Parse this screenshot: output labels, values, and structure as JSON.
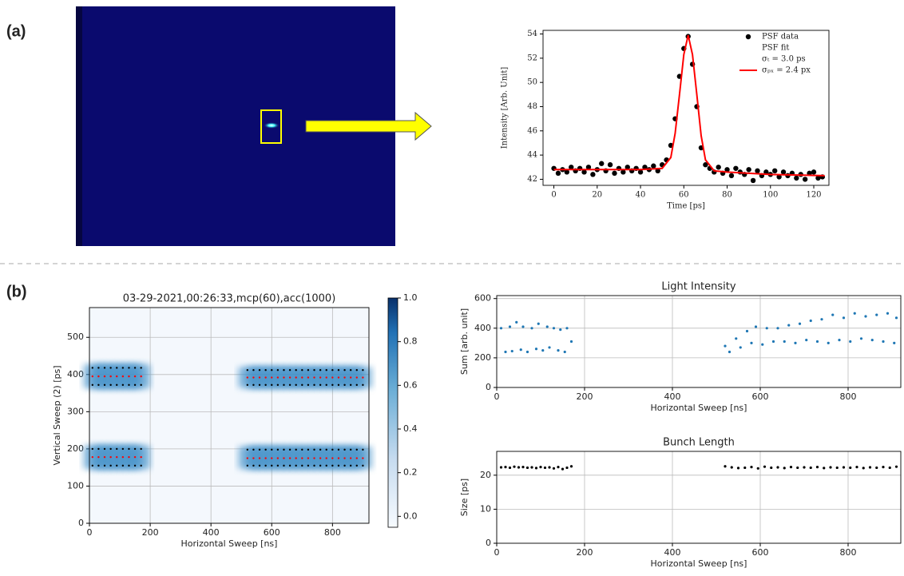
{
  "panel_labels": [
    "(a)",
    "(b)"
  ],
  "chart_data": [
    {
      "type": "scatter",
      "xlabel": "Time [ps]",
      "ylabel": "Intensity [Arb. Unit]",
      "xlim": [
        -5,
        127
      ],
      "ylim": [
        41.5,
        54.3
      ],
      "xticks": [
        0,
        20,
        40,
        60,
        80,
        100,
        120
      ],
      "yticks": [
        42,
        44,
        46,
        48,
        50,
        52,
        54
      ],
      "grid": false,
      "legend_notes": [
        "σₜ = 3.0 ps",
        "σₚₓ = 2.4 px"
      ],
      "series": [
        {
          "name": "PSF data",
          "color": "#000000",
          "mode": "markers",
          "x": [
            0,
            2,
            4,
            6,
            8,
            10,
            12,
            14,
            16,
            18,
            20,
            22,
            24,
            26,
            28,
            30,
            32,
            34,
            36,
            38,
            40,
            42,
            44,
            46,
            48,
            50,
            52,
            54,
            56,
            58,
            60,
            62,
            64,
            66,
            68,
            70,
            72,
            74,
            76,
            78,
            80,
            82,
            84,
            86,
            88,
            90,
            92,
            94,
            96,
            98,
            100,
            102,
            104,
            106,
            108,
            110,
            112,
            114,
            116,
            118,
            120,
            122,
            124
          ],
          "values": [
            42.9,
            42.5,
            42.8,
            42.6,
            43.0,
            42.7,
            42.9,
            42.6,
            43.0,
            42.4,
            42.8,
            43.3,
            42.7,
            43.2,
            42.5,
            42.9,
            42.6,
            43.0,
            42.7,
            42.9,
            42.6,
            43.0,
            42.8,
            43.1,
            42.7,
            43.2,
            43.6,
            44.8,
            47.0,
            50.5,
            52.8,
            53.8,
            51.5,
            48.0,
            44.6,
            43.2,
            42.9,
            42.6,
            43.0,
            42.5,
            42.8,
            42.3,
            42.9,
            42.6,
            42.4,
            42.8,
            41.9,
            42.7,
            42.3,
            42.6,
            42.4,
            42.7,
            42.2,
            42.6,
            42.3,
            42.5,
            42.1,
            42.4,
            42.0,
            42.5,
            42.6,
            42.1,
            42.2
          ]
        },
        {
          "name": "PSF fit",
          "color": "#ff0000",
          "mode": "line",
          "x": [
            0,
            20,
            40,
            50,
            54,
            56,
            58,
            60,
            62,
            64,
            66,
            68,
            70,
            74,
            80,
            100,
            125
          ],
          "values": [
            42.8,
            42.8,
            42.8,
            42.9,
            43.8,
            45.8,
            49.0,
            52.3,
            53.9,
            52.3,
            49.0,
            45.6,
            43.6,
            42.7,
            42.6,
            42.4,
            42.3
          ]
        }
      ]
    },
    {
      "type": "heatmap",
      "title": "03-29-2021,00:26:33,mcp(60),acc(1000)",
      "xlabel": "Horizontal Sweep [ns]",
      "ylabel": "Vertical Sweep (2) [ps]",
      "xlim": [
        0,
        920
      ],
      "ylim": [
        0,
        580
      ],
      "xticks": [
        0,
        200,
        400,
        600,
        800
      ],
      "yticks": [
        0,
        100,
        200,
        300,
        400,
        500
      ],
      "grid": true,
      "colorbar_lim": [
        -0.05,
        1.0
      ],
      "colorbar_ticks": [
        {
          "value": 0,
          "label": "0.0"
        },
        0.2,
        0.4,
        0.6,
        0.8,
        {
          "value": 1,
          "label": "1.0"
        }
      ],
      "x": [
        10,
        30,
        50,
        70,
        90,
        110,
        130,
        150,
        170,
        520,
        540,
        560,
        580,
        600,
        620,
        640,
        660,
        680,
        700,
        720,
        740,
        760,
        780,
        800,
        820,
        840,
        860,
        880,
        900
      ],
      "series": [
        {
          "color": "#000000",
          "values": [
            418,
            418,
            418,
            418,
            418,
            418,
            418,
            418,
            418,
            412,
            412,
            412,
            412,
            412,
            412,
            412,
            412,
            412,
            412,
            412,
            412,
            412,
            412,
            412,
            412,
            412,
            412,
            412,
            412
          ]
        },
        {
          "color": "#ff0000",
          "values": [
            395,
            395,
            395,
            395,
            395,
            395,
            395,
            395,
            395,
            392,
            392,
            392,
            392,
            392,
            392,
            392,
            392,
            392,
            392,
            392,
            392,
            392,
            392,
            392,
            392,
            392,
            392,
            392,
            392
          ]
        },
        {
          "color": "#000000",
          "values": [
            372,
            372,
            372,
            372,
            372,
            372,
            372,
            372,
            372,
            372,
            372,
            372,
            372,
            372,
            372,
            372,
            372,
            372,
            372,
            372,
            372,
            372,
            372,
            372,
            372,
            372,
            372,
            372,
            372
          ]
        },
        {
          "color": "#000000",
          "values": [
            200,
            200,
            200,
            200,
            200,
            200,
            200,
            200,
            200,
            198,
            198,
            198,
            198,
            198,
            198,
            198,
            198,
            198,
            198,
            198,
            198,
            198,
            198,
            198,
            198,
            198,
            198,
            198,
            198
          ]
        },
        {
          "color": "#ff0000",
          "values": [
            178,
            178,
            178,
            178,
            178,
            178,
            178,
            178,
            178,
            175,
            175,
            175,
            175,
            175,
            175,
            175,
            175,
            175,
            175,
            175,
            175,
            175,
            175,
            175,
            175,
            175,
            175,
            175,
            175
          ]
        },
        {
          "color": "#000000",
          "values": [
            155,
            155,
            155,
            155,
            155,
            155,
            155,
            155,
            155,
            155,
            155,
            155,
            155,
            155,
            155,
            155,
            155,
            155,
            155,
            155,
            155,
            155,
            155,
            155,
            155,
            155,
            155,
            155,
            155
          ]
        }
      ]
    },
    {
      "type": "scatter",
      "title": "Light Intensity",
      "xlabel": "Horizontal Sweep [ns]",
      "ylabel": "Sum [arb. unit]",
      "xlim": [
        0,
        920
      ],
      "ylim": [
        0,
        620
      ],
      "xticks": [
        0,
        200,
        400,
        600,
        800
      ],
      "yticks": [
        0,
        200,
        400,
        600
      ],
      "grid": true,
      "series": [
        {
          "color": "#1f77b4",
          "mode": "markers",
          "x": [
            10,
            30,
            45,
            60,
            80,
            95,
            115,
            130,
            145,
            160,
            520,
            545,
            570,
            590,
            615,
            640,
            665,
            690,
            715,
            740,
            765,
            790,
            815,
            840,
            865,
            890,
            910
          ],
          "values": [
            400,
            410,
            440,
            410,
            400,
            430,
            410,
            400,
            390,
            400,
            280,
            330,
            380,
            410,
            400,
            400,
            420,
            430,
            450,
            460,
            490,
            470,
            500,
            480,
            490,
            500,
            470
          ]
        },
        {
          "color": "#1f77b4",
          "mode": "markers",
          "x": [
            20,
            35,
            55,
            70,
            90,
            105,
            120,
            140,
            155,
            170,
            530,
            555,
            580,
            605,
            630,
            655,
            680,
            705,
            730,
            755,
            780,
            805,
            830,
            855,
            880,
            905
          ],
          "values": [
            240,
            245,
            255,
            240,
            260,
            250,
            270,
            250,
            240,
            310,
            240,
            270,
            300,
            290,
            310,
            310,
            300,
            320,
            310,
            300,
            320,
            310,
            330,
            320,
            310,
            300
          ]
        }
      ]
    },
    {
      "type": "scatter",
      "title": "Bunch Length",
      "xlabel": "Horizontal Sweep [ns]",
      "ylabel": "Size [ps]",
      "xlim": [
        0,
        920
      ],
      "ylim": [
        0,
        27
      ],
      "xticks": [
        0,
        200,
        400,
        600,
        800
      ],
      "yticks": [
        0,
        10,
        20
      ],
      "grid": true,
      "series": [
        {
          "color": "#000000",
          "mode": "markers",
          "x": [
            10,
            20,
            30,
            40,
            50,
            60,
            70,
            80,
            90,
            100,
            110,
            120,
            130,
            140,
            150,
            160,
            170,
            520,
            535,
            550,
            565,
            580,
            595,
            610,
            625,
            640,
            655,
            670,
            685,
            700,
            715,
            730,
            745,
            760,
            775,
            790,
            805,
            820,
            835,
            850,
            865,
            880,
            895,
            910
          ],
          "values": [
            22.3,
            22.4,
            22.2,
            22.5,
            22.3,
            22.4,
            22.2,
            22.3,
            22.1,
            22.4,
            22.2,
            22.3,
            22.0,
            22.4,
            21.8,
            22.2,
            22.6,
            22.6,
            22.3,
            22.1,
            22.2,
            22.4,
            22.0,
            22.5,
            22.2,
            22.3,
            22.1,
            22.4,
            22.2,
            22.3,
            22.2,
            22.4,
            22.1,
            22.3,
            22.2,
            22.3,
            22.2,
            22.4,
            22.1,
            22.3,
            22.2,
            22.4,
            22.2,
            22.5
          ]
        }
      ]
    }
  ]
}
